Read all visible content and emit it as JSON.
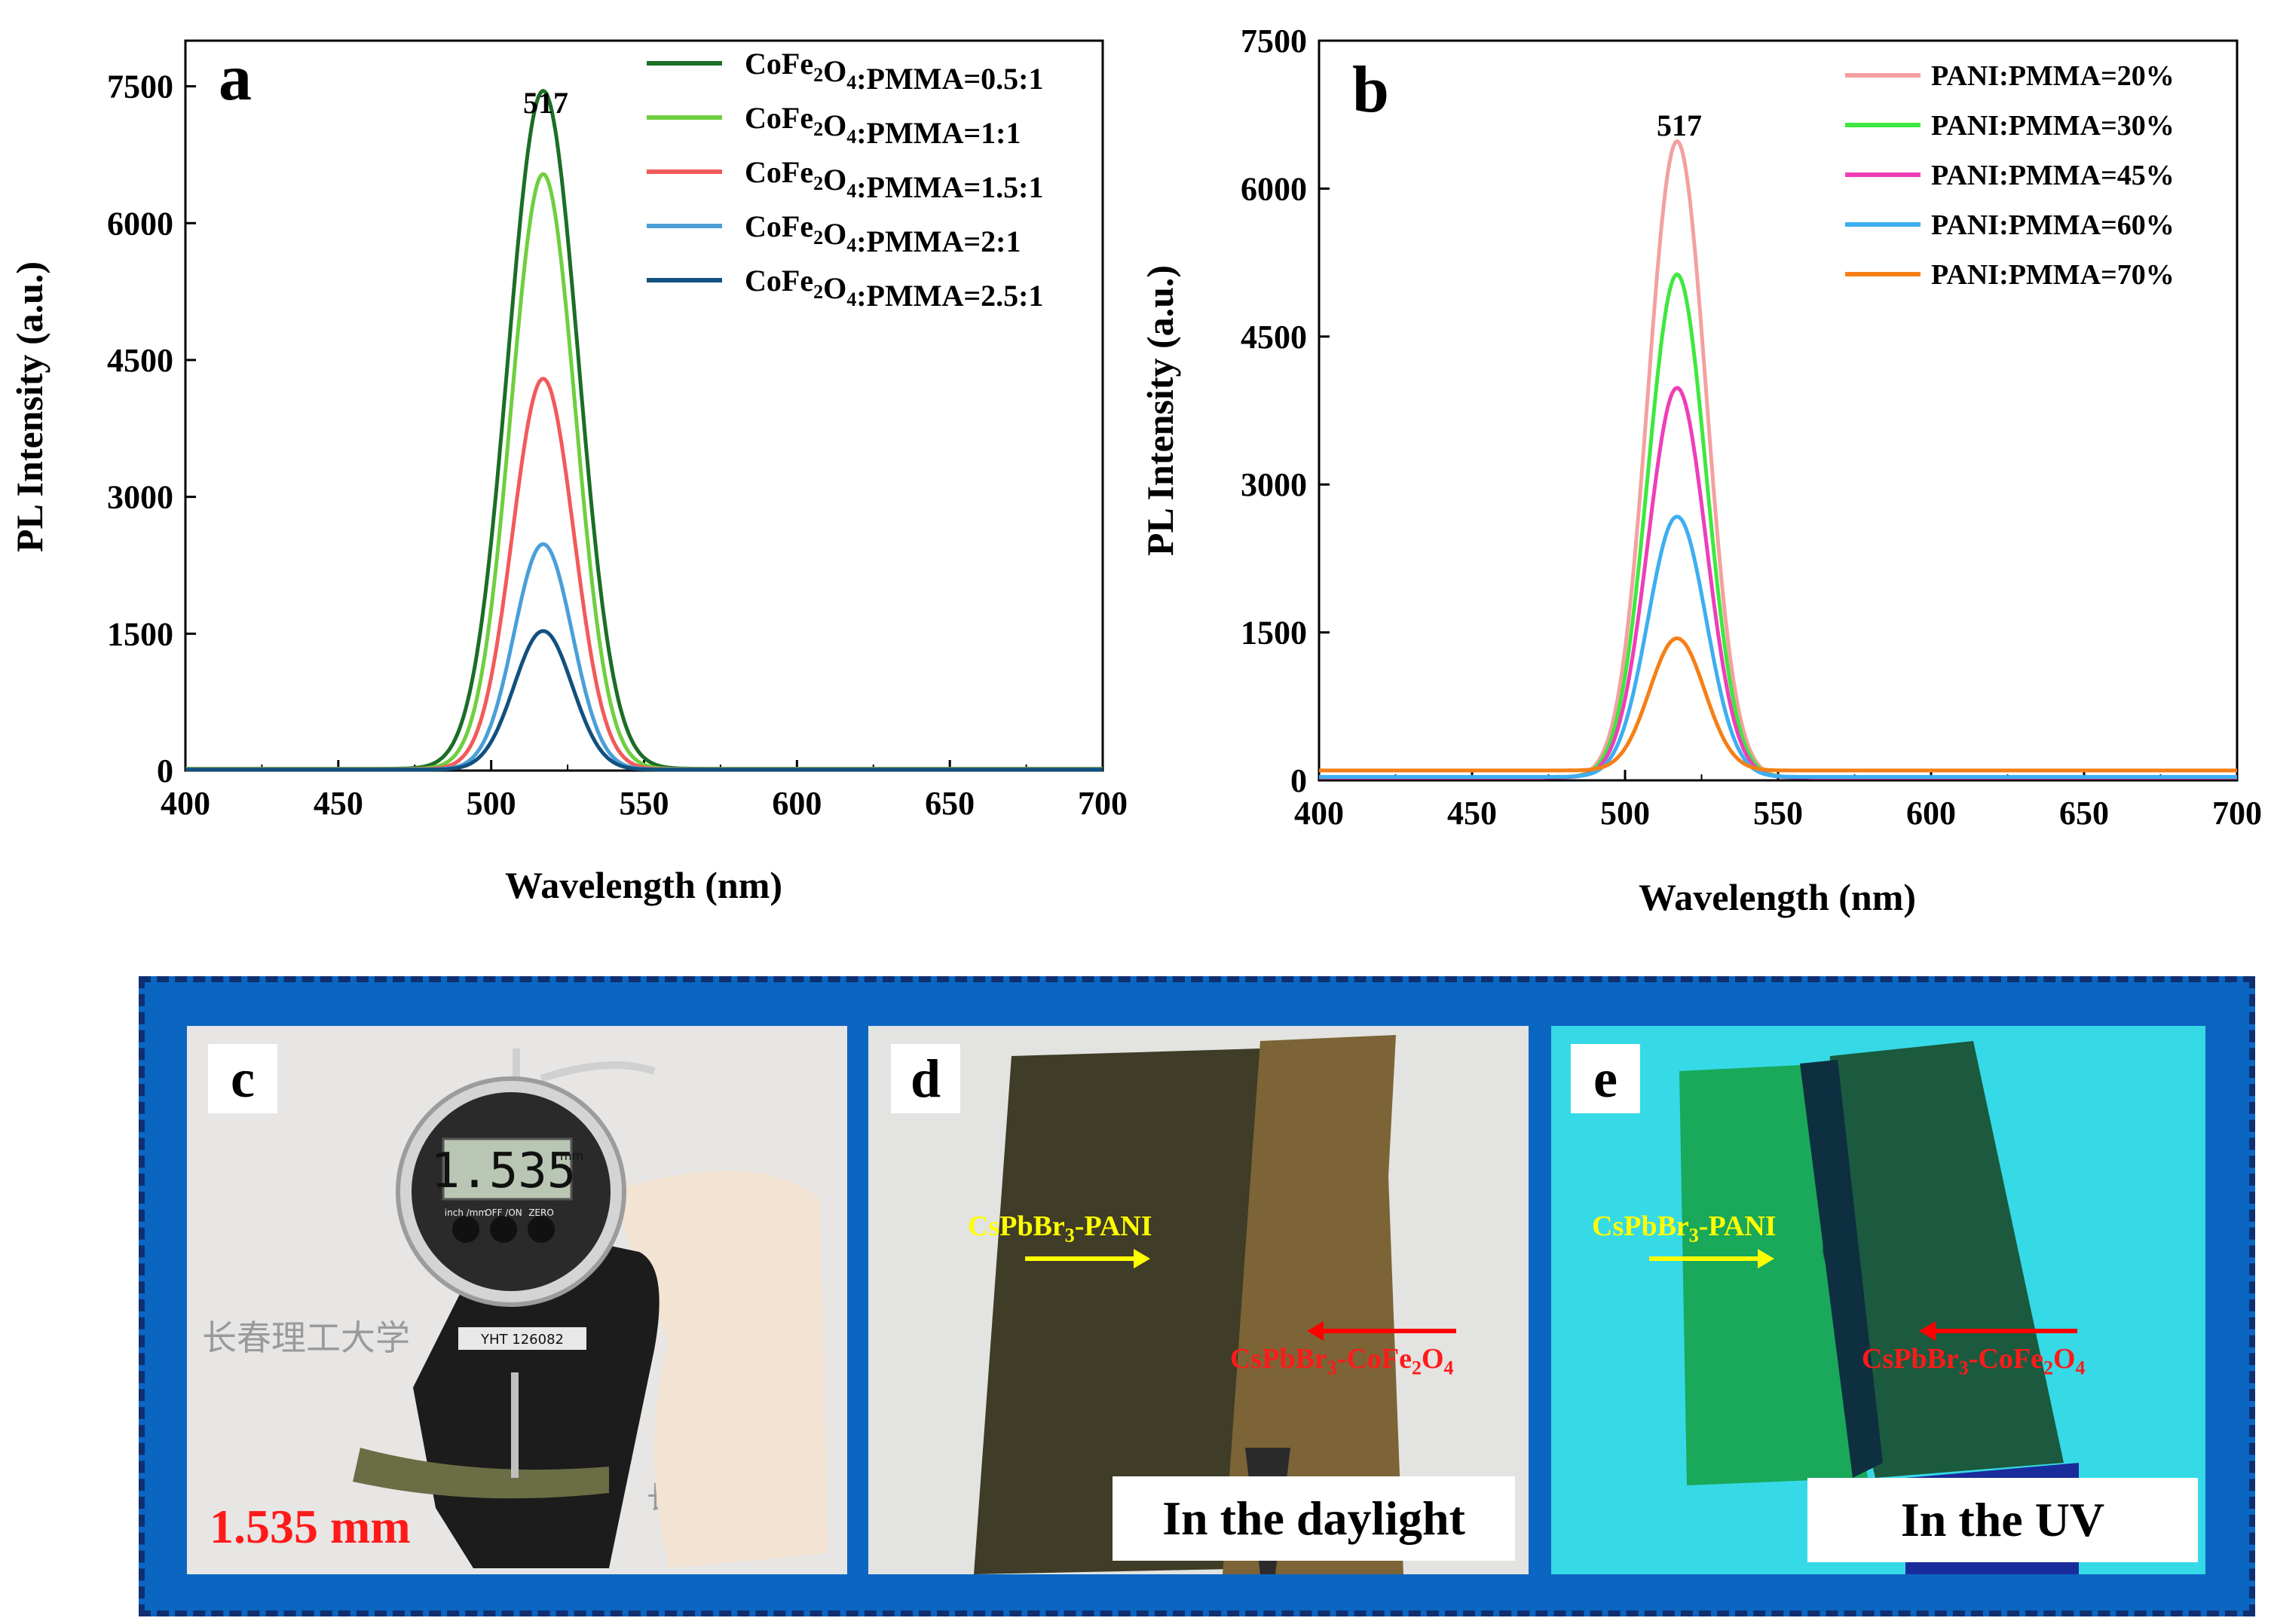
{
  "panel_a": {
    "letter": "a",
    "peak_label": "517",
    "legend": [
      {
        "prefix": "CoFe",
        "sub1": "2",
        "mid": "O",
        "sub2": "4",
        "suffix": ":PMMA=0.5:1",
        "color": "#1b6e26"
      },
      {
        "prefix": "CoFe",
        "sub1": "2",
        "mid": "O",
        "sub2": "4",
        "suffix": ":PMMA=1:1",
        "color": "#6fcf3f"
      },
      {
        "prefix": "CoFe",
        "sub1": "2",
        "mid": "O",
        "sub2": "4",
        "suffix": ":PMMA=1.5:1",
        "color": "#f25a5a"
      },
      {
        "prefix": "CoFe",
        "sub1": "2",
        "mid": "O",
        "sub2": "4",
        "suffix": ":PMMA=2:1",
        "color": "#4a9fd8"
      },
      {
        "prefix": "CoFe",
        "sub1": "2",
        "mid": "O",
        "sub2": "4",
        "suffix": ":PMMA=2.5:1",
        "color": "#12507e"
      }
    ]
  },
  "panel_b": {
    "letter": "b",
    "peak_label": "517",
    "legend": [
      {
        "text": "PANI:PMMA=20%",
        "color": "#f4a0a0"
      },
      {
        "text": "PANI:PMMA=30%",
        "color": "#3ee83e"
      },
      {
        "text": "PANI:PMMA=45%",
        "color": "#ee3eb8"
      },
      {
        "text": "PANI:PMMA=60%",
        "color": "#3daef0"
      },
      {
        "text": "PANI:PMMA=70%",
        "color": "#f57f17"
      }
    ]
  },
  "chart_data": [
    {
      "type": "line",
      "xlabel": "Wavelength (nm)",
      "ylabel": "PL Intensity (a.u.)",
      "xlim": [
        400,
        700
      ],
      "ylim": [
        0,
        8000
      ],
      "xticks": [
        400,
        450,
        500,
        550,
        600,
        650,
        700
      ],
      "yticks": [
        0,
        1500,
        3000,
        4500,
        6000,
        7500
      ],
      "peak_center": 517,
      "series": [
        {
          "name": "CoFe2O4:PMMA=0.5:1",
          "peak": 7430,
          "sigma": 11.5,
          "baseline": 20,
          "color": "#1b6e26"
        },
        {
          "name": "CoFe2O4:PMMA=1:1",
          "peak": 6520,
          "sigma": 10.5,
          "baseline": 18,
          "color": "#6fcf3f"
        },
        {
          "name": "CoFe2O4:PMMA=1.5:1",
          "peak": 4280,
          "sigma": 10,
          "baseline": 15,
          "color": "#f25a5a"
        },
        {
          "name": "CoFe2O4:PMMA=2:1",
          "peak": 2470,
          "sigma": 9.5,
          "baseline": 12,
          "color": "#4a9fd8"
        },
        {
          "name": "CoFe2O4:PMMA=2.5:1",
          "peak": 1520,
          "sigma": 9.5,
          "baseline": 10,
          "color": "#12507e"
        }
      ]
    },
    {
      "type": "line",
      "xlabel": "Wavelength (nm)",
      "ylabel": "PL Intensity (a.u.)",
      "xlim": [
        400,
        700
      ],
      "ylim": [
        0,
        7500
      ],
      "xticks": [
        400,
        450,
        500,
        550,
        600,
        650,
        700
      ],
      "yticks": [
        0,
        1500,
        3000,
        4500,
        6000,
        7500
      ],
      "peak_center": 517,
      "series": [
        {
          "name": "PANI:PMMA=20%",
          "peak": 6450,
          "sigma": 9.5,
          "baseline": 30,
          "color": "#f4a0a0"
        },
        {
          "name": "PANI:PMMA=30%",
          "peak": 5100,
          "sigma": 9.5,
          "baseline": 30,
          "color": "#3ee83e"
        },
        {
          "name": "PANI:PMMA=45%",
          "peak": 3950,
          "sigma": 9.5,
          "baseline": 30,
          "color": "#ee3eb8"
        },
        {
          "name": "PANI:PMMA=60%",
          "peak": 2640,
          "sigma": 9.5,
          "baseline": 35,
          "color": "#3daef0"
        },
        {
          "name": "PANI:PMMA=70%",
          "peak": 1340,
          "sigma": 9,
          "baseline": 100,
          "color": "#f57f17"
        }
      ]
    }
  ],
  "photos": {
    "c": {
      "letter": "c",
      "reading": "1.535",
      "mm_unit": "mm",
      "thickness_label": "1.535 mm",
      "gauge_model": "YHT 126082",
      "brand_text": "长春理工大学",
      "btn1": "inch /mm",
      "btn2": "OFF /ON",
      "btn3": "ZERO"
    },
    "d": {
      "letter": "d",
      "caption": "In the daylight",
      "pani_label": "CsPbBr",
      "pani_sub": "3",
      "pani_suffix": "-PANI",
      "cofe_label": "CsPbBr",
      "cofe_sub": "3",
      "cofe_mid": "-CoFe",
      "cofe_sub2": "2",
      "cofe_o": "O",
      "cofe_sub3": "4"
    },
    "e": {
      "letter": "e",
      "caption": "In the UV",
      "pani_label": "CsPbBr",
      "pani_sub": "3",
      "pani_suffix": "-PANI",
      "cofe_label": "CsPbBr",
      "cofe_sub": "3",
      "cofe_mid": "-CoFe",
      "cofe_sub2": "2",
      "cofe_o": "O",
      "cofe_sub3": "4"
    }
  }
}
